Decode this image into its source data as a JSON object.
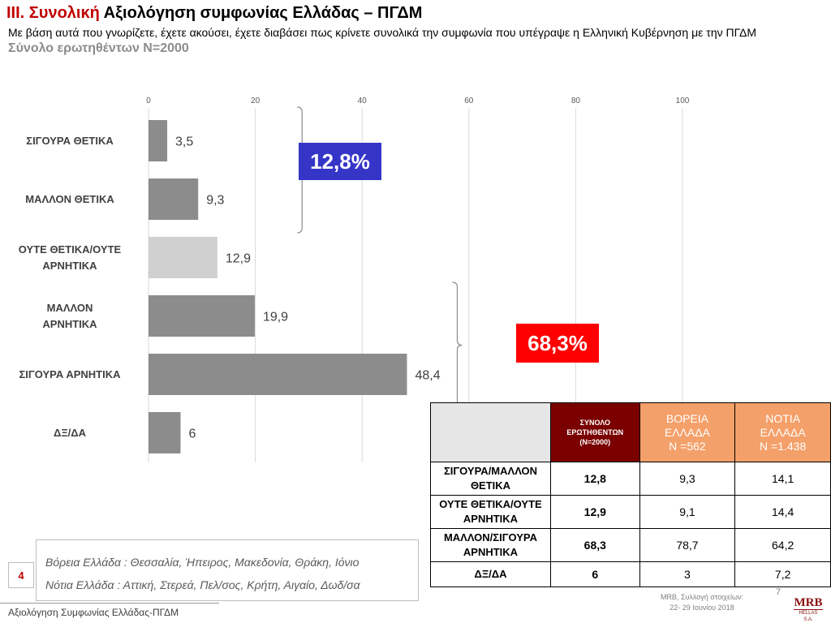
{
  "header": {
    "title_prefix": "III.",
    "title_red": "Συνολική",
    "title_rest": "Αξιολόγηση συμφωνίας Ελλάδας – ΠΓΔΜ",
    "subtitle": "Με βάση αυτά που γνωρίζετε, έχετε ακούσει, έχετε διαβάσει πως κρίνετε συνολικά την συμφωνία που υπέγραψε η Ελληνική Κυβέρνηση με την ΠΓΔΜ",
    "sample": "Σύνολο ερωτηθέντων Ν=2000"
  },
  "chart_data": {
    "type": "bar",
    "orientation": "horizontal",
    "categories": [
      "ΣΙΓΟΥΡΑ ΘΕΤΙΚΑ",
      "ΜΑΛΛΟΝ ΘΕΤΙΚΑ",
      "ΟΥΤΕ ΘΕΤΙΚΑ/ΟΥΤΕ ΑΡΝΗΤΙΚΑ",
      "ΜΑΛΛΟΝ ΑΡΝΗΤΙΚΑ",
      "ΣΙΓΟΥΡΑ ΑΡΝΗΤΙΚΑ",
      "ΔΞ/ΔΑ"
    ],
    "category_lines": [
      [
        "ΣΙΓΟΥΡΑ ΘΕΤΙΚΑ"
      ],
      [
        "ΜΑΛΛΟΝ ΘΕΤΙΚΑ"
      ],
      [
        "ΟΥΤΕ ΘΕΤΙΚΑ/ΟΥΤΕ",
        "ΑΡΝΗΤΙΚΑ"
      ],
      [
        "ΜΑΛΛΟΝ",
        "ΑΡΝΗΤΙΚΑ"
      ],
      [
        "ΣΙΓΟΥΡΑ ΑΡΝΗΤΙΚΑ"
      ],
      [
        "ΔΞ/ΔΑ"
      ]
    ],
    "values": [
      3.5,
      9.3,
      12.9,
      19.9,
      48.4,
      6
    ],
    "value_labels": [
      "3,5",
      "9,3",
      "12,9",
      "19,9",
      "48,4",
      "6"
    ],
    "bar_colors": [
      "#8c8c8c",
      "#8c8c8c",
      "#d0d0d0",
      "#8c8c8c",
      "#8c8c8c",
      "#8c8c8c"
    ],
    "xticks": [
      0,
      20,
      40,
      60,
      80,
      100
    ],
    "xlim": [
      0,
      100
    ],
    "grid": true,
    "groups": [
      {
        "label": "12,8%",
        "color": "#3535c8",
        "from": 0,
        "to": 1
      },
      {
        "label": "68,3%",
        "color": "#ff0000",
        "from": 3,
        "to": 4
      }
    ]
  },
  "table": {
    "header_total": [
      "ΣΥΝΟΛΟ",
      "ΕΡΩΤΗΘΕΝΤΩΝ",
      "(Ν=2000)"
    ],
    "header_north": [
      "ΒΟΡΕΙΑ",
      "ΕΛΛΑΔΑ",
      "Ν =562"
    ],
    "header_south": [
      "ΝΟΤΙΑ",
      "ΕΛΛΑΔΑ",
      "Ν =1.438"
    ],
    "colors": {
      "total": "#7a0000",
      "region": "#f4a06a"
    },
    "rows": [
      {
        "label": [
          "ΣΙΓΟΥΡΑ/ΜΑΛΛΟΝ",
          "ΘΕΤΙΚΑ"
        ],
        "total": "12,8",
        "north": "9,3",
        "south": "14,1"
      },
      {
        "label": [
          "ΟΥΤΕ ΘΕΤΙΚΑ/ΟΥΤΕ",
          "ΑΡΝΗΤΙΚΑ"
        ],
        "total": "12,9",
        "north": "9,1",
        "south": "14,4"
      },
      {
        "label": [
          "ΜΑΛΛΟΝ/ΣΙΓΟΥΡΑ",
          "ΑΡΝΗΤΙΚΑ"
        ],
        "total": "68,3",
        "north": "78,7",
        "south": "64,2"
      },
      {
        "label": [
          "ΔΞ/ΔΑ"
        ],
        "total": "6",
        "north": "3",
        "south": "7,2"
      }
    ]
  },
  "footnote": {
    "north": "Βόρεια Ελλάδα : Θεσσαλία, Ήπειρος, Μακεδονία, Θράκη, Ιόνιο",
    "south": "Νότια Ελλάδα : Αττική, Στερεά, Πελ/σος, Κρήτη, Αιγαίο, Δωδ/σα"
  },
  "page_number": "4",
  "footer_text": "Αξιολόγηση Συμφωνίας Ελλάδας-ΠΓΔΜ",
  "source": [
    "MRB, Συλλογή στοιχείων:",
    "22- 29 Ιουνίου 2018"
  ],
  "slide_number": "7",
  "logo": {
    "name": "MRB",
    "sub": "HELLAS S.A."
  }
}
